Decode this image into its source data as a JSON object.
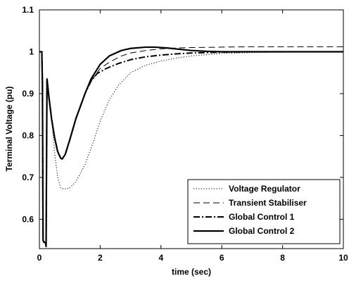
{
  "chart_data": {
    "type": "line",
    "xlabel": "time (sec)",
    "ylabel": "Terminal Voltage (pu)",
    "xlim": [
      0,
      10
    ],
    "ylim": [
      0.53,
      1.1
    ],
    "xticks": [
      "0",
      "2",
      "4",
      "6",
      "8",
      "10"
    ],
    "yticks": [
      "0.6",
      "0.7",
      "0.8",
      "0.9",
      "1",
      "1.1"
    ],
    "grid": false,
    "legend_position": "bottom-right",
    "series": [
      {
        "name": "Voltage Regulator",
        "style": "dotted",
        "x": [
          0,
          0.02,
          0.05,
          0.08,
          0.1,
          0.12,
          0.15,
          0.2,
          0.22,
          0.25,
          0.3,
          0.4,
          0.5,
          0.6,
          0.7,
          0.8,
          1.0,
          1.2,
          1.5,
          1.8,
          2.0,
          2.3,
          2.6,
          3.0,
          3.5,
          4.0,
          4.5,
          5.0,
          5.5,
          6.0,
          7.0,
          8.0,
          9.0,
          10.0
        ],
        "y": [
          1.0,
          1.0,
          1.0,
          1.0,
          0.92,
          0.55,
          0.545,
          0.545,
          0.535,
          0.93,
          0.9,
          0.84,
          0.76,
          0.7,
          0.675,
          0.672,
          0.675,
          0.69,
          0.73,
          0.79,
          0.835,
          0.885,
          0.92,
          0.95,
          0.968,
          0.978,
          0.985,
          0.99,
          0.993,
          0.996,
          0.998,
          0.999,
          1.0,
          1.0
        ]
      },
      {
        "name": "Transient Stabiliser",
        "style": "dashed",
        "x": [
          0,
          0.02,
          0.05,
          0.08,
          0.1,
          0.12,
          0.15,
          0.2,
          0.22,
          0.25,
          0.3,
          0.4,
          0.5,
          0.6,
          0.7,
          0.75,
          0.85,
          1.0,
          1.2,
          1.5,
          1.7,
          2.0,
          2.3,
          2.7,
          3.0,
          3.5,
          4.0,
          4.5,
          5.0,
          6.0,
          7.0,
          8.0,
          9.0,
          10.0
        ],
        "y": [
          1.0,
          1.0,
          1.0,
          1.0,
          0.92,
          0.55,
          0.545,
          0.545,
          0.535,
          0.935,
          0.9,
          0.84,
          0.795,
          0.762,
          0.746,
          0.744,
          0.755,
          0.79,
          0.84,
          0.9,
          0.93,
          0.96,
          0.975,
          0.99,
          0.997,
          1.003,
          1.007,
          1.009,
          1.01,
          1.011,
          1.012,
          1.012,
          1.012,
          1.012
        ]
      },
      {
        "name": "Global Control 1",
        "style": "dashdot",
        "x": [
          0,
          0.02,
          0.05,
          0.08,
          0.1,
          0.12,
          0.15,
          0.2,
          0.22,
          0.25,
          0.3,
          0.4,
          0.5,
          0.6,
          0.7,
          0.75,
          0.85,
          1.0,
          1.2,
          1.5,
          1.7,
          1.9,
          2.2,
          2.6,
          3.0,
          3.5,
          4.0,
          4.5,
          5.0,
          6.0,
          7.0,
          8.0,
          9.0,
          10.0
        ],
        "y": [
          1.0,
          1.0,
          1.0,
          1.0,
          0.92,
          0.55,
          0.545,
          0.545,
          0.535,
          0.935,
          0.9,
          0.84,
          0.795,
          0.762,
          0.746,
          0.744,
          0.755,
          0.79,
          0.84,
          0.9,
          0.93,
          0.948,
          0.96,
          0.972,
          0.981,
          0.988,
          0.992,
          0.995,
          0.997,
          0.999,
          1.0,
          1.0,
          1.0,
          1.0
        ]
      },
      {
        "name": "Global Control 2",
        "style": "solid",
        "x": [
          0,
          0.02,
          0.05,
          0.08,
          0.1,
          0.12,
          0.15,
          0.2,
          0.22,
          0.25,
          0.3,
          0.4,
          0.5,
          0.6,
          0.7,
          0.75,
          0.85,
          1.0,
          1.2,
          1.5,
          1.7,
          2.0,
          2.3,
          2.7,
          3.0,
          3.5,
          3.8,
          4.2,
          4.6,
          5.0,
          5.5,
          6.0,
          7.0,
          8.0,
          10.0
        ],
        "y": [
          1.0,
          1.0,
          1.0,
          1.0,
          0.92,
          0.55,
          0.545,
          0.545,
          0.535,
          0.935,
          0.9,
          0.84,
          0.795,
          0.762,
          0.746,
          0.744,
          0.755,
          0.79,
          0.84,
          0.9,
          0.935,
          0.97,
          0.99,
          1.003,
          1.008,
          1.011,
          1.011,
          1.009,
          1.006,
          1.003,
          1.001,
          1.0,
          1.0,
          1.0,
          1.0
        ]
      }
    ]
  }
}
